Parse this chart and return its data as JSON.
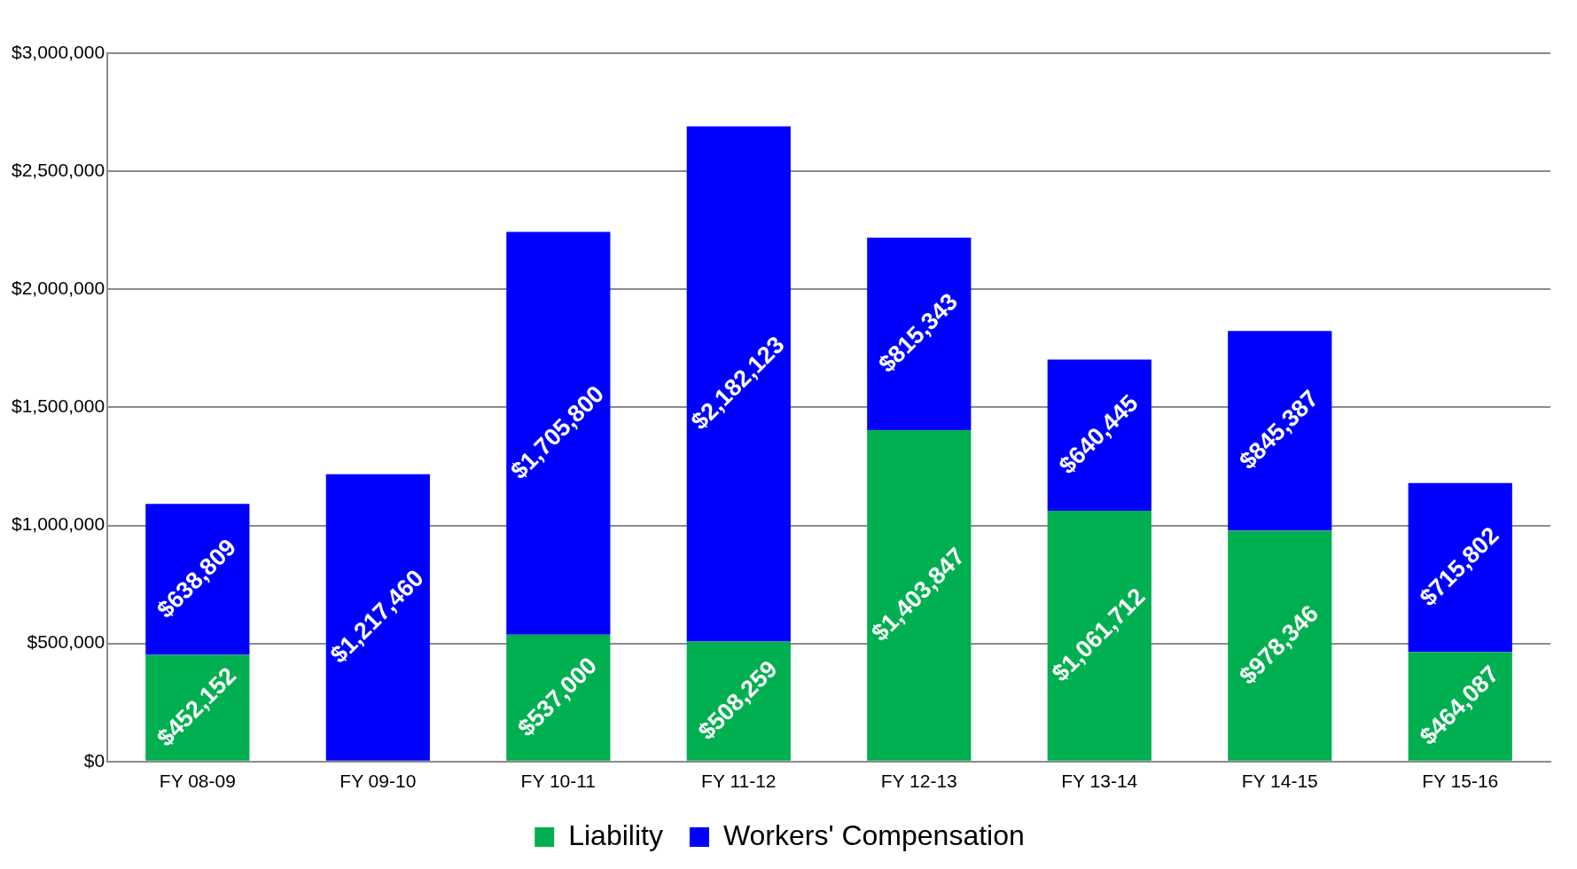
{
  "chart_data": {
    "type": "bar",
    "stacked": true,
    "categories": [
      "FY 08-09",
      "FY 09-10",
      "FY 10-11",
      "FY 11-12",
      "FY 12-13",
      "FY 13-14",
      "FY 14-15",
      "FY 15-16"
    ],
    "series": [
      {
        "name": "Liability",
        "color": "#00b050",
        "values": [
          452152,
          null,
          537000,
          508259,
          1403847,
          1061712,
          978346,
          464087
        ],
        "value_labels": [
          "$452,152",
          null,
          "$537,000",
          "$508,259",
          "$1,403,847",
          "$1,061,712",
          "$978,346",
          "$464,087"
        ]
      },
      {
        "name": "Workers' Compensation",
        "color": "#0000ff",
        "values": [
          638809,
          1217460,
          1705800,
          2182123,
          815343,
          640445,
          845387,
          715802
        ],
        "value_labels": [
          "$638,809",
          "$1,217,460",
          "$1,705,800",
          "$2,182,123",
          "$815,343",
          "$640,445",
          "$845,387",
          "$715,802"
        ]
      }
    ],
    "ylim": [
      0,
      3000000
    ],
    "yticks": [
      {
        "value": 0,
        "label": "$0"
      },
      {
        "value": 500000,
        "label": "$500,000"
      },
      {
        "value": 1000000,
        "label": "$1,000,000"
      },
      {
        "value": 1500000,
        "label": "$1,500,000"
      },
      {
        "value": 2000000,
        "label": "$2,000,000"
      },
      {
        "value": 2500000,
        "label": "$2,500,000"
      },
      {
        "value": 3000000,
        "label": "$3,000,000"
      }
    ],
    "grid": "y",
    "legend": "bottom"
  }
}
